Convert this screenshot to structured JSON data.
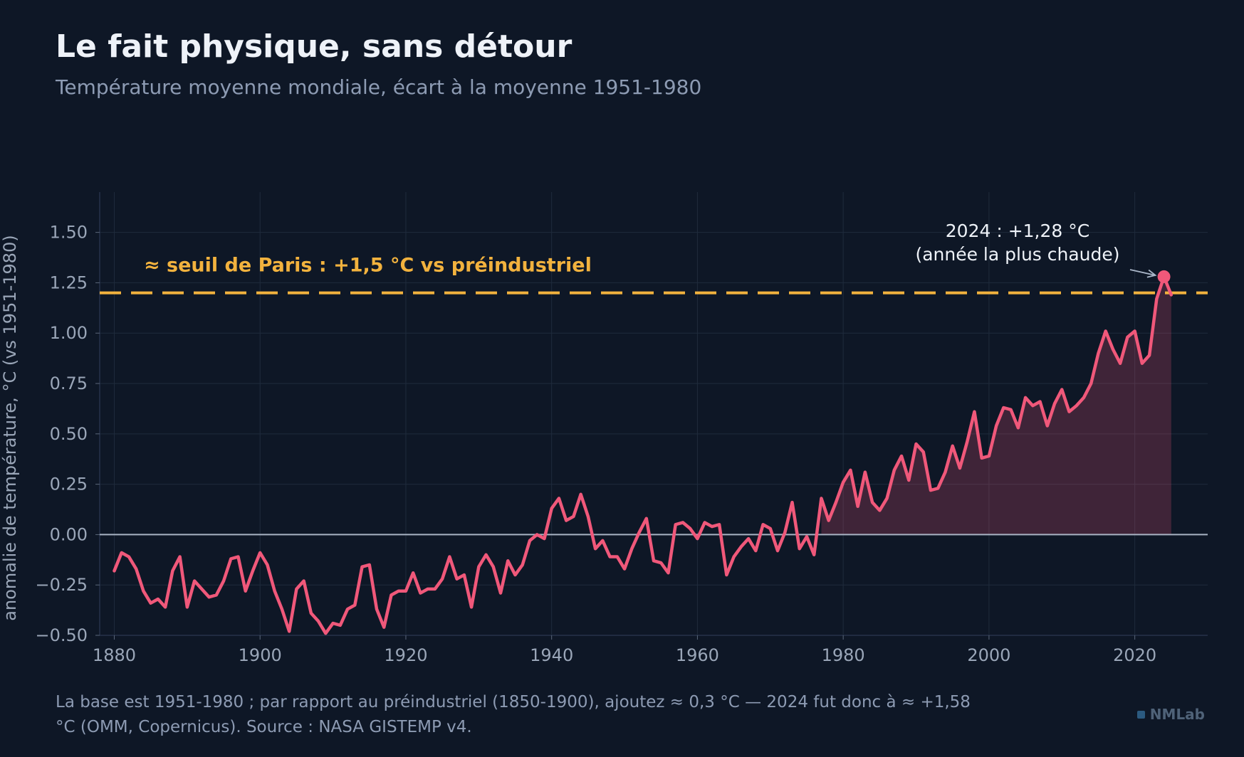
{
  "header": {
    "title": "Le fait physique, sans détour",
    "subtitle": "Température moyenne mondiale, écart à la moyenne 1951-1980"
  },
  "footer": {
    "note": "La base est 1951-1980 ; par rapport au préindustriel (1850-1900), ajoutez ≈ 0,3 °C — 2024 fut donc à ≈ +1,58 °C (OMM, Copernicus). Source : NASA GISTEMP v4.",
    "brand": "NMLab"
  },
  "colors": {
    "background": "#0e1726",
    "line": "#f0587a",
    "threshold": "#f2b23e",
    "grid": "#1f2b3c",
    "axis_text": "#9aa6b8",
    "zero_line": "#a9b4c4"
  },
  "chart_data": {
    "type": "line",
    "title": "Le fait physique, sans détour",
    "subtitle": "Température moyenne mondiale, écart à la moyenne 1951-1980",
    "xlabel": "",
    "ylabel": "anomalie de température, °C (vs 1951-1980)",
    "xlim": [
      1878,
      2030
    ],
    "ylim": [
      -0.5,
      1.7
    ],
    "x_ticks": [
      1880,
      1900,
      1920,
      1940,
      1960,
      1980,
      2000,
      2020
    ],
    "y_ticks": [
      -0.5,
      -0.25,
      0,
      0.25,
      0.5,
      0.75,
      1,
      1.25,
      1.5
    ],
    "y_tick_labels": [
      "−0.50",
      "−0.25",
      "0.00",
      "0.25",
      "0.50",
      "0.75",
      "1.00",
      "1.25",
      "1.50"
    ],
    "grid": true,
    "fill_positive_from": 1977,
    "series": [
      {
        "x": [
          1880,
          1881,
          1882,
          1883,
          1884,
          1885,
          1886,
          1887,
          1888,
          1889,
          1890,
          1891,
          1892,
          1893,
          1894,
          1895,
          1896,
          1897,
          1898,
          1899,
          1900,
          1901,
          1902,
          1903,
          1904,
          1905,
          1906,
          1907,
          1908,
          1909,
          1910,
          1911,
          1912,
          1913,
          1914,
          1915,
          1916,
          1917,
          1918,
          1919,
          1920,
          1921,
          1922,
          1923,
          1924,
          1925,
          1926,
          1927,
          1928,
          1929,
          1930,
          1931,
          1932,
          1933,
          1934,
          1935,
          1936,
          1937,
          1938,
          1939,
          1940,
          1941,
          1942,
          1943,
          1944,
          1945,
          1946,
          1947,
          1948,
          1949,
          1950,
          1951,
          1952,
          1953,
          1954,
          1955,
          1956,
          1957,
          1958,
          1959,
          1960,
          1961,
          1962,
          1963,
          1964,
          1965,
          1966,
          1967,
          1968,
          1969,
          1970,
          1971,
          1972,
          1973,
          1974,
          1975,
          1976,
          1977,
          1978,
          1979,
          1980,
          1981,
          1982,
          1983,
          1984,
          1985,
          1986,
          1987,
          1988,
          1989,
          1990,
          1991,
          1992,
          1993,
          1994,
          1995,
          1996,
          1997,
          1998,
          1999,
          2000,
          2001,
          2002,
          2003,
          2004,
          2005,
          2006,
          2007,
          2008,
          2009,
          2010,
          2011,
          2012,
          2013,
          2014,
          2015,
          2016,
          2017,
          2018,
          2019,
          2020,
          2021,
          2022,
          2023,
          2024,
          2025
        ],
        "values": [
          -0.18,
          -0.09,
          -0.11,
          -0.17,
          -0.28,
          -0.34,
          -0.32,
          -0.36,
          -0.18,
          -0.11,
          -0.36,
          -0.23,
          -0.27,
          -0.31,
          -0.3,
          -0.23,
          -0.12,
          -0.11,
          -0.28,
          -0.18,
          -0.09,
          -0.15,
          -0.28,
          -0.37,
          -0.48,
          -0.27,
          -0.23,
          -0.39,
          -0.43,
          -0.49,
          -0.44,
          -0.45,
          -0.37,
          -0.35,
          -0.16,
          -0.15,
          -0.37,
          -0.46,
          -0.3,
          -0.28,
          -0.28,
          -0.19,
          -0.29,
          -0.27,
          -0.27,
          -0.22,
          -0.11,
          -0.22,
          -0.2,
          -0.36,
          -0.16,
          -0.1,
          -0.16,
          -0.29,
          -0.13,
          -0.2,
          -0.15,
          -0.03,
          0.0,
          -0.02,
          0.13,
          0.18,
          0.07,
          0.09,
          0.2,
          0.09,
          -0.07,
          -0.03,
          -0.11,
          -0.11,
          -0.17,
          -0.07,
          0.01,
          0.08,
          -0.13,
          -0.14,
          -0.19,
          0.05,
          0.06,
          0.03,
          -0.02,
          0.06,
          0.04,
          0.05,
          -0.2,
          -0.11,
          -0.06,
          -0.02,
          -0.08,
          0.05,
          0.03,
          -0.08,
          0.01,
          0.16,
          -0.07,
          -0.01,
          -0.1,
          0.18,
          0.07,
          0.16,
          0.26,
          0.32,
          0.14,
          0.31,
          0.16,
          0.12,
          0.18,
          0.32,
          0.39,
          0.27,
          0.45,
          0.41,
          0.22,
          0.23,
          0.31,
          0.44,
          0.33,
          0.46,
          0.61,
          0.38,
          0.39,
          0.54,
          0.63,
          0.62,
          0.53,
          0.68,
          0.64,
          0.66,
          0.54,
          0.65,
          0.72,
          0.61,
          0.64,
          0.68,
          0.75,
          0.9,
          1.01,
          0.92,
          0.85,
          0.98,
          1.01,
          0.85,
          0.89,
          1.17,
          1.28,
          1.19
        ]
      }
    ],
    "threshold": {
      "value": 1.2,
      "label": "≈ seuil de Paris : +1,5 °C vs préindustriel"
    },
    "annotation": {
      "year": 2024,
      "value": 1.28,
      "line1": "2024 : +1,28 °C",
      "line2": "(année la plus chaude)"
    }
  }
}
